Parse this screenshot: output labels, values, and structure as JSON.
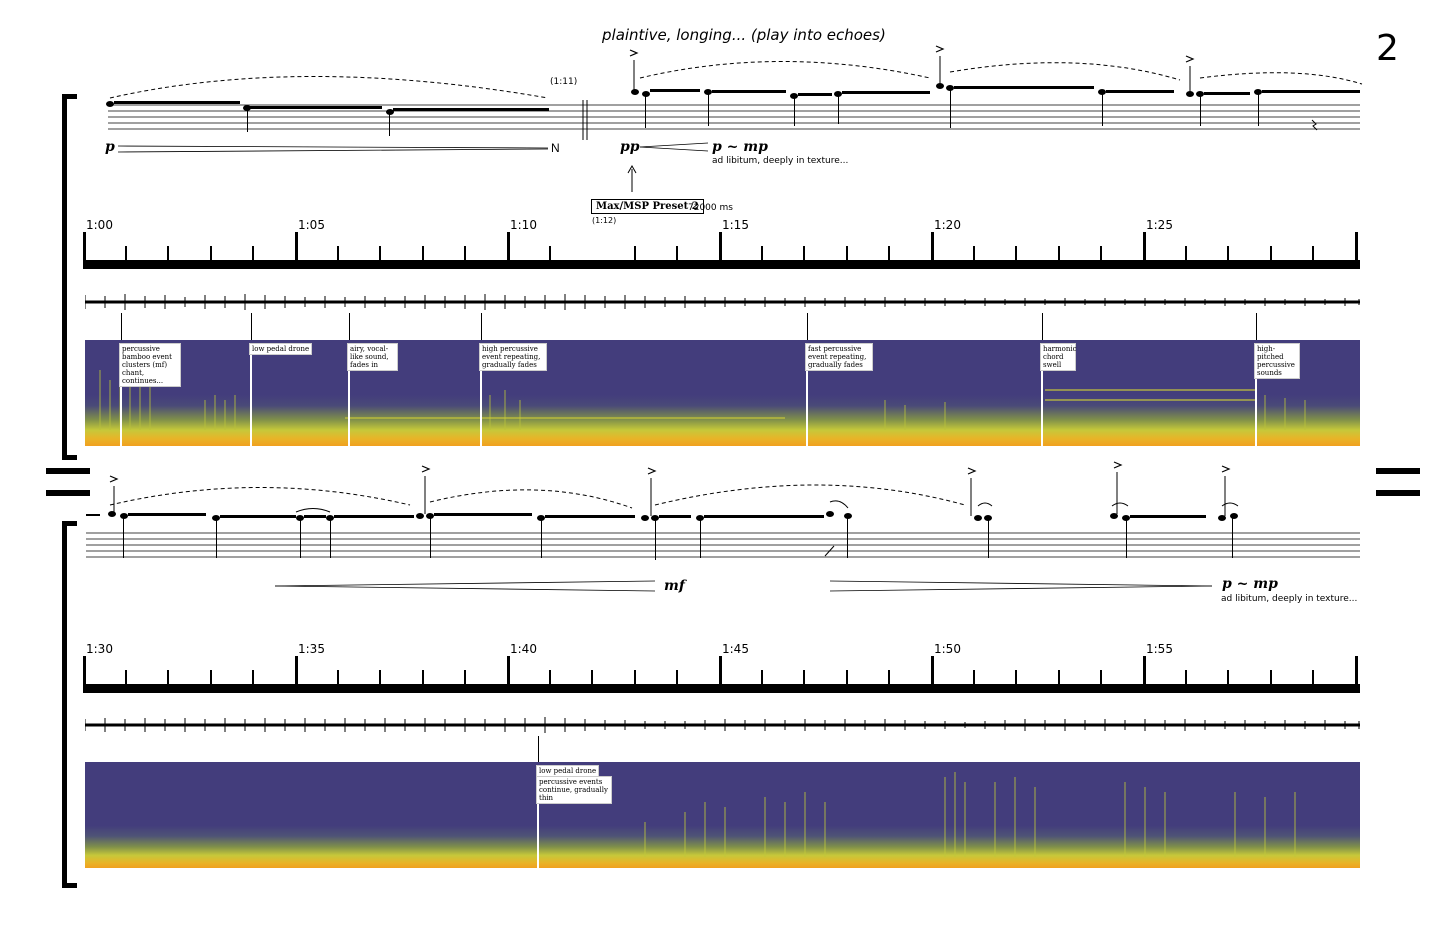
{
  "page_number": "2",
  "expression": "plaintive, longing... (play into echoes)",
  "system1": {
    "time_mark_top": "(1:11)",
    "dyn_start": "p",
    "dyn_end": "N",
    "dyn2_start": "pp",
    "dyn2_target": "p ~ mp",
    "texture_note": "ad libitum, deeply in texture...",
    "preset_label": "Max/MSP Preset 2",
    "preset_ms": "72000 ms",
    "preset_time": "(1:12)",
    "timeline_labels": [
      "1:00",
      "1:05",
      "1:10",
      "1:15",
      "1:20",
      "1:25"
    ],
    "annotations": [
      "percussive bamboo event clusters (mf) chant, continues...",
      "low pedal drone",
      "airy, vocal-like sound, fades in",
      "high percussive event repeating, gradually fades",
      "fast percussive event repeating, gradually fades",
      "harmonic chord swell",
      "high-pitched percussive sounds"
    ]
  },
  "system2": {
    "dyn_peak": "mf",
    "dyn_target": "p ~ mp",
    "texture_note": "ad libitum, deeply in texture...",
    "timeline_labels": [
      "1:30",
      "1:35",
      "1:40",
      "1:45",
      "1:50",
      "1:55"
    ],
    "annotations": [
      "low pedal drone",
      "percussive events continue, gradually thin"
    ]
  }
}
